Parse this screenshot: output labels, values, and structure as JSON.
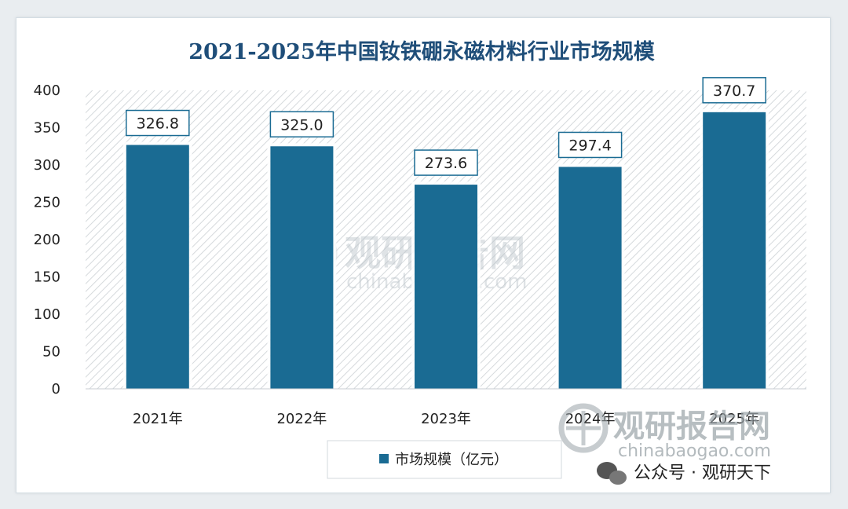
{
  "chart_data": {
    "type": "bar",
    "title": "2021-2025年中国钕铁硼永磁材料行业市场规模",
    "categories": [
      "2021年",
      "2022年",
      "2023年",
      "2024年",
      "2025年"
    ],
    "series": [
      {
        "name": "市场规模（亿元）",
        "values": [
          326.8,
          325.0,
          273.6,
          297.4,
          370.7
        ],
        "color": "#1a6b93"
      }
    ],
    "data_labels": [
      "326.8",
      "325.0",
      "273.6",
      "297.4",
      "370.7"
    ],
    "yticks": [
      "0",
      "50",
      "100",
      "150",
      "200",
      "250",
      "300",
      "350",
      "400"
    ],
    "ylim": [
      0,
      400
    ],
    "grid": false,
    "legend_position": "bottom"
  },
  "watermark": {
    "brand": "观研报告网",
    "url": "chinabaogao.com"
  },
  "wechat": {
    "text": "公众号 · 观研天下"
  },
  "colors": {
    "bar": "#1a6b93",
    "title": "#1f4e79",
    "label_border": "#1a6b93",
    "hatch": "#d5d9dc"
  },
  "icons": [
    "logo-mark-icon",
    "wechat-icon"
  ]
}
